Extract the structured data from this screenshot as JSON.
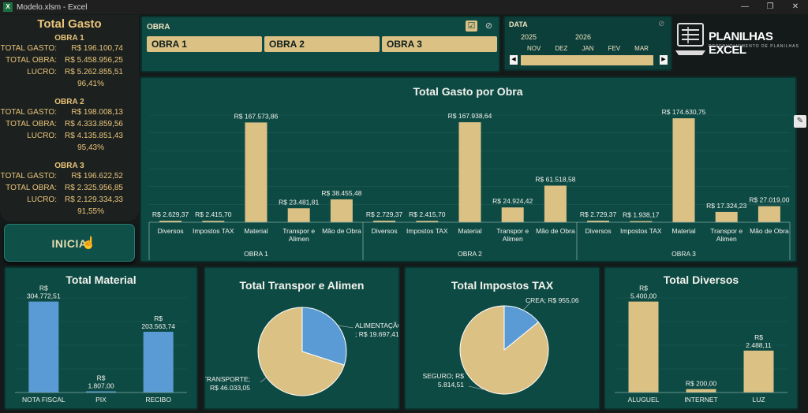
{
  "window": {
    "title": "Modelo.xlsm - Excel",
    "minimize": "—",
    "restore": "❐",
    "close": "✕"
  },
  "sidebar": {
    "title": "Total Gasto",
    "labels": {
      "gasto": "TOTAL GASTO:",
      "obra": "TOTAL OBRA:",
      "lucro": "LUCRO:"
    },
    "obras": [
      {
        "name": "OBRA 1",
        "gasto": "R$ 196.100,74",
        "total": "R$ 5.458.956,25",
        "lucro": "R$ 5.262.855,51",
        "pct": "96,41%"
      },
      {
        "name": "OBRA 2",
        "gasto": "R$ 198.008,13",
        "total": "R$ 4.333.859,56",
        "lucro": "R$ 4.135.851,43",
        "pct": "95,43%"
      },
      {
        "name": "OBRA 3",
        "gasto": "R$ 196.622,52",
        "total": "R$ 2.325.956,85",
        "lucro": "R$ 2.129.334,33",
        "pct": "91,55%"
      }
    ],
    "button": "INICIA"
  },
  "obra_slicer": {
    "label": "OBRA",
    "items": [
      "OBRA 1",
      "OBRA 2",
      "OBRA 3"
    ]
  },
  "date_slicer": {
    "label": "DATA",
    "years": [
      "2025",
      "2026"
    ],
    "months": [
      "NOV",
      "DEZ",
      "JAN",
      "FEV",
      "MAR"
    ]
  },
  "logo": {
    "text": "PLANILHAS EXCEL",
    "sub": "DESENVOLVIMENTO DE PLANILHAS"
  },
  "colors": {
    "bar": "#dcc185",
    "blue": "#5b9bd5",
    "panel": "#0e4a44",
    "accent": "#e8c47a"
  },
  "chart_data": [
    {
      "type": "bar",
      "title": "Total Gasto por Obra",
      "groups": [
        {
          "name": "OBRA 1",
          "categories": [
            "Diversos",
            "Impostos TAX",
            "Material",
            "Transpor e Alimen",
            "Mão de Obra"
          ],
          "values": [
            2629.37,
            2415.7,
            167573.86,
            23481.81,
            38455.48
          ],
          "labels": [
            "R$ 2.629,37",
            "R$ 2.415,70",
            "R$ 167.573,86",
            "R$ 23.481,81",
            "R$ 38.455,48"
          ]
        },
        {
          "name": "OBRA 2",
          "categories": [
            "Diversos",
            "Impostos TAX",
            "Material",
            "Transpor e Alimen",
            "Mão de Obra"
          ],
          "values": [
            2729.37,
            2415.7,
            167938.64,
            24924.42,
            61518.58
          ],
          "labels": [
            "R$ 2.729,37",
            "R$ 2.415,70",
            "R$ 167.938,64",
            "R$ 24.924,42",
            "R$ 61.518,58"
          ]
        },
        {
          "name": "OBRA 3",
          "categories": [
            "Diversos",
            "Impostos TAX",
            "Material",
            "Transpor e Alimen",
            "Mão de Obra"
          ],
          "values": [
            2729.37,
            1938.17,
            174630.75,
            17324.23,
            27019.0
          ],
          "labels": [
            "R$ 2.729,37",
            "R$ 1.938,17",
            "R$ 174.630,75",
            "R$ 17.324,23",
            "R$ 27.019,00"
          ]
        }
      ]
    },
    {
      "type": "bar",
      "title": "Total Material",
      "categories": [
        "NOTA FISCAL",
        "PIX",
        "RECIBO"
      ],
      "values": [
        304772.51,
        1807.0,
        203563.74
      ],
      "labels": [
        [
          "R$",
          "304.772,51"
        ],
        [
          "R$",
          "1.807,00"
        ],
        [
          "R$",
          "203.563,74"
        ]
      ]
    },
    {
      "type": "pie",
      "title": "Total Transpor e Alimen",
      "categories": [
        "ALIMENTAÇÃO",
        "TRANSPORTE"
      ],
      "values": [
        19697.41,
        46033.05
      ],
      "labels": [
        [
          "ALIMENTAÇÃO",
          "; R$ 19.697,41"
        ],
        [
          "TRANSPORTE;",
          "R$ 46.033,05"
        ]
      ]
    },
    {
      "type": "pie",
      "title": "Total Impostos TAX",
      "categories": [
        "CREA",
        "SEGURO"
      ],
      "values": [
        955.06,
        5814.51
      ],
      "labels": [
        [
          "CREA; R$ 955,06"
        ],
        [
          "SEGURO; R$",
          "5.814,51"
        ]
      ]
    },
    {
      "type": "bar",
      "title": "Total Diversos",
      "categories": [
        "ALUGUEL",
        "INTERNET",
        "LUZ"
      ],
      "values": [
        5400.0,
        200.0,
        2488.11
      ],
      "labels": [
        [
          "R$",
          "5.400,00"
        ],
        [
          "R$ 200,00"
        ],
        [
          "R$",
          "2.488,11"
        ]
      ]
    }
  ]
}
